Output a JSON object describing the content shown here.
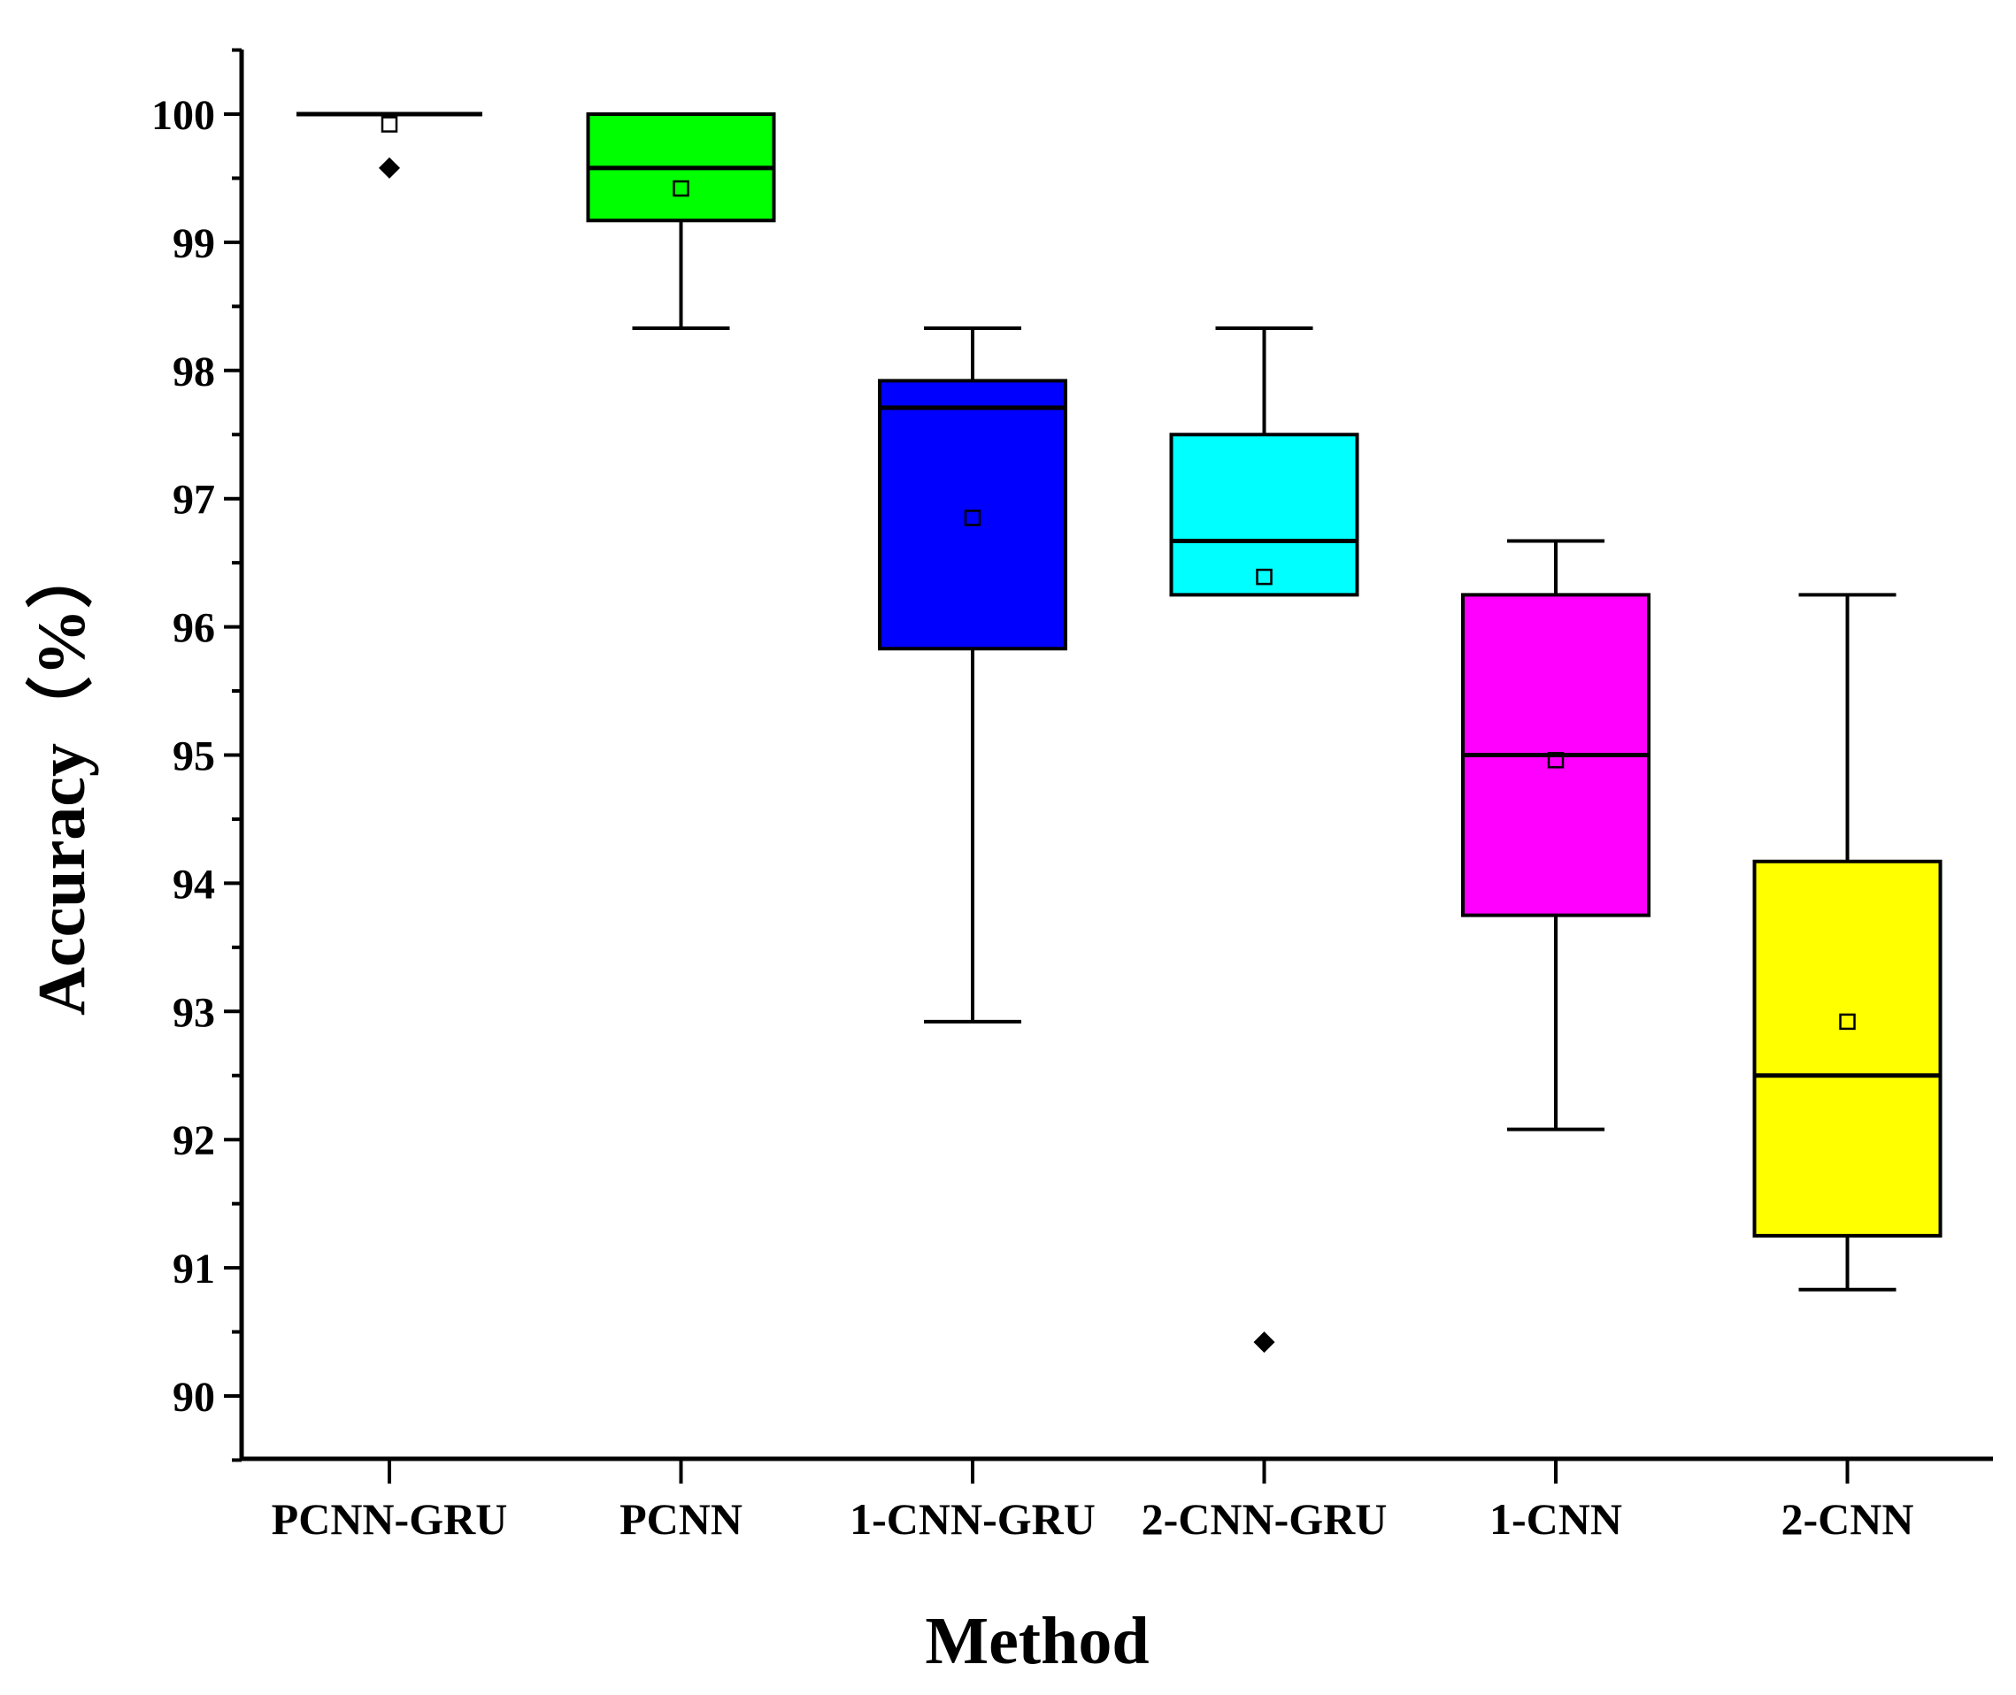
{
  "chart_data": {
    "type": "box",
    "title": "",
    "xlabel": "Method",
    "ylabel": "Accuracy（%）",
    "ylim": [
      89.5,
      100.5
    ],
    "yticks": [
      90,
      91,
      92,
      93,
      94,
      95,
      96,
      97,
      98,
      99,
      100
    ],
    "ytick_labels": [
      "90",
      "91",
      "92",
      "93",
      "94",
      "95",
      "96",
      "97",
      "98",
      "99",
      "100"
    ],
    "categories": [
      "PCNN-GRU",
      "PCNN",
      "1-CNN-GRU",
      "2-CNN-GRU",
      "1-CNN",
      "2-CNN"
    ],
    "boxes": [
      {
        "name": "PCNN-GRU",
        "color": "#ffffff",
        "whisker_low": 100.0,
        "q1": 100.0,
        "median": 100.0,
        "q3": 100.0,
        "whisker_high": 100.0,
        "mean": 99.92,
        "outliers": [
          99.58
        ]
      },
      {
        "name": "PCNN",
        "color": "#00ff00",
        "whisker_low": 98.33,
        "q1": 99.17,
        "median": 99.58,
        "q3": 100.0,
        "whisker_high": 100.0,
        "mean": 99.42,
        "outliers": []
      },
      {
        "name": "1-CNN-GRU",
        "color": "#0000ff",
        "whisker_low": 92.92,
        "q1": 95.83,
        "median": 97.71,
        "q3": 97.92,
        "whisker_high": 98.33,
        "mean": 96.85,
        "outliers": []
      },
      {
        "name": "2-CNN-GRU",
        "color": "#00ffff",
        "whisker_low": 96.25,
        "q1": 96.25,
        "median": 96.67,
        "q3": 97.5,
        "whisker_high": 98.33,
        "mean": 96.39,
        "outliers": [
          90.42
        ]
      },
      {
        "name": "1-CNN",
        "color": "#ff00ff",
        "whisker_low": 92.08,
        "q1": 93.75,
        "median": 95.0,
        "q3": 96.25,
        "whisker_high": 96.67,
        "mean": 94.96,
        "outliers": []
      },
      {
        "name": "2-CNN",
        "color": "#ffff00",
        "whisker_low": 90.83,
        "q1": 91.25,
        "median": 92.5,
        "q3": 94.17,
        "whisker_high": 96.25,
        "mean": 92.92,
        "outliers": []
      }
    ],
    "grid": false,
    "legend": "none"
  }
}
